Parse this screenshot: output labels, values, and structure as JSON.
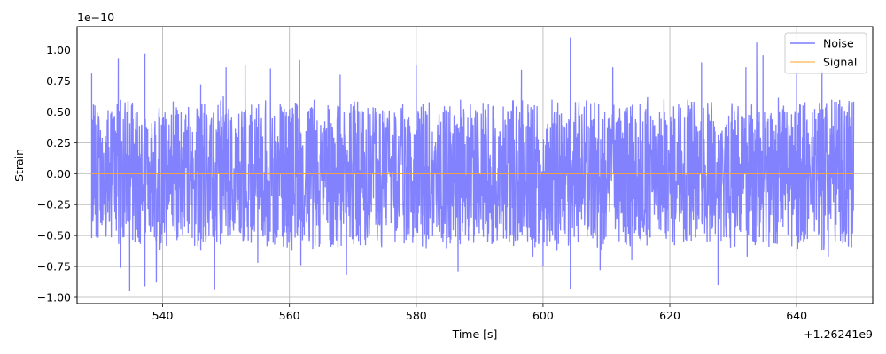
{
  "chart_data": {
    "type": "line",
    "xlabel": "Time [s]",
    "ylabel": "Strain",
    "x_offset_label": "+1.26241e9",
    "y_scale_label": "1e−10",
    "xlim": [
      526.5,
      652.0
    ],
    "ylim": [
      -1.05,
      1.19
    ],
    "x_ticks": [
      540,
      560,
      580,
      600,
      620,
      640
    ],
    "x_tick_labels": [
      "540",
      "560",
      "580",
      "600",
      "620",
      "640"
    ],
    "y_ticks": [
      -1.0,
      -0.75,
      -0.5,
      -0.25,
      0.0,
      0.25,
      0.5,
      0.75,
      1.0
    ],
    "y_tick_labels": [
      "−1.00",
      "−0.75",
      "−0.50",
      "−0.25",
      "0.00",
      "0.25",
      "0.50",
      "0.75",
      "1.00"
    ],
    "grid": true,
    "legend_position": "top-right",
    "series": [
      {
        "name": "Noise",
        "color": "#7b7bff",
        "x_range": [
          528.8,
          649.0
        ],
        "envelope_max": 1.1,
        "envelope_min": -0.95,
        "description_points": [
          [
            528.8,
            0.81
          ],
          [
            528.8,
            -0.52
          ],
          [
            533.0,
            0.93
          ],
          [
            533.4,
            -0.76
          ],
          [
            534.8,
            -0.95
          ],
          [
            537.2,
            0.97
          ],
          [
            537.2,
            -0.91
          ],
          [
            539.0,
            -0.88
          ],
          [
            546.0,
            0.72
          ],
          [
            548.2,
            -0.94
          ],
          [
            550.0,
            0.86
          ],
          [
            553.0,
            0.88
          ],
          [
            555.0,
            -0.72
          ],
          [
            557.0,
            0.85
          ],
          [
            561.6,
            0.92
          ],
          [
            561.8,
            -0.74
          ],
          [
            568.0,
            0.8
          ],
          [
            569.0,
            -0.82
          ],
          [
            580.0,
            0.88
          ],
          [
            584.0,
            -0.52
          ],
          [
            586.6,
            -0.79
          ],
          [
            596.6,
            0.84
          ],
          [
            598.4,
            -0.67
          ],
          [
            600.0,
            -0.75
          ],
          [
            604.3,
            1.1
          ],
          [
            604.3,
            -0.93
          ],
          [
            609.0,
            -0.78
          ],
          [
            611.0,
            0.86
          ],
          [
            614.0,
            -0.7
          ],
          [
            625.0,
            0.9
          ],
          [
            627.6,
            -0.9
          ],
          [
            632.0,
            0.86
          ],
          [
            632.2,
            -0.67
          ],
          [
            633.7,
            1.06
          ],
          [
            634.7,
            0.96
          ],
          [
            640.0,
            0.82
          ],
          [
            644.0,
            0.83
          ],
          [
            645.0,
            -0.67
          ],
          [
            648.0,
            0.5
          ],
          [
            648.6,
            -0.39
          ]
        ]
      },
      {
        "name": "Signal",
        "color": "#ffa726",
        "x": [
          528.8,
          649.0
        ],
        "y": [
          0.0,
          0.0
        ]
      }
    ]
  }
}
